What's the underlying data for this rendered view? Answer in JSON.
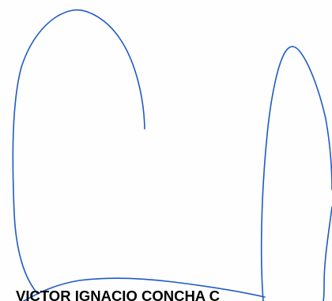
{
  "document": {
    "signer_name": "VICTOR IGNACIO CONCHA C",
    "signature_ink_color": "#1e5bc6",
    "paper_color": "#fefefe"
  }
}
